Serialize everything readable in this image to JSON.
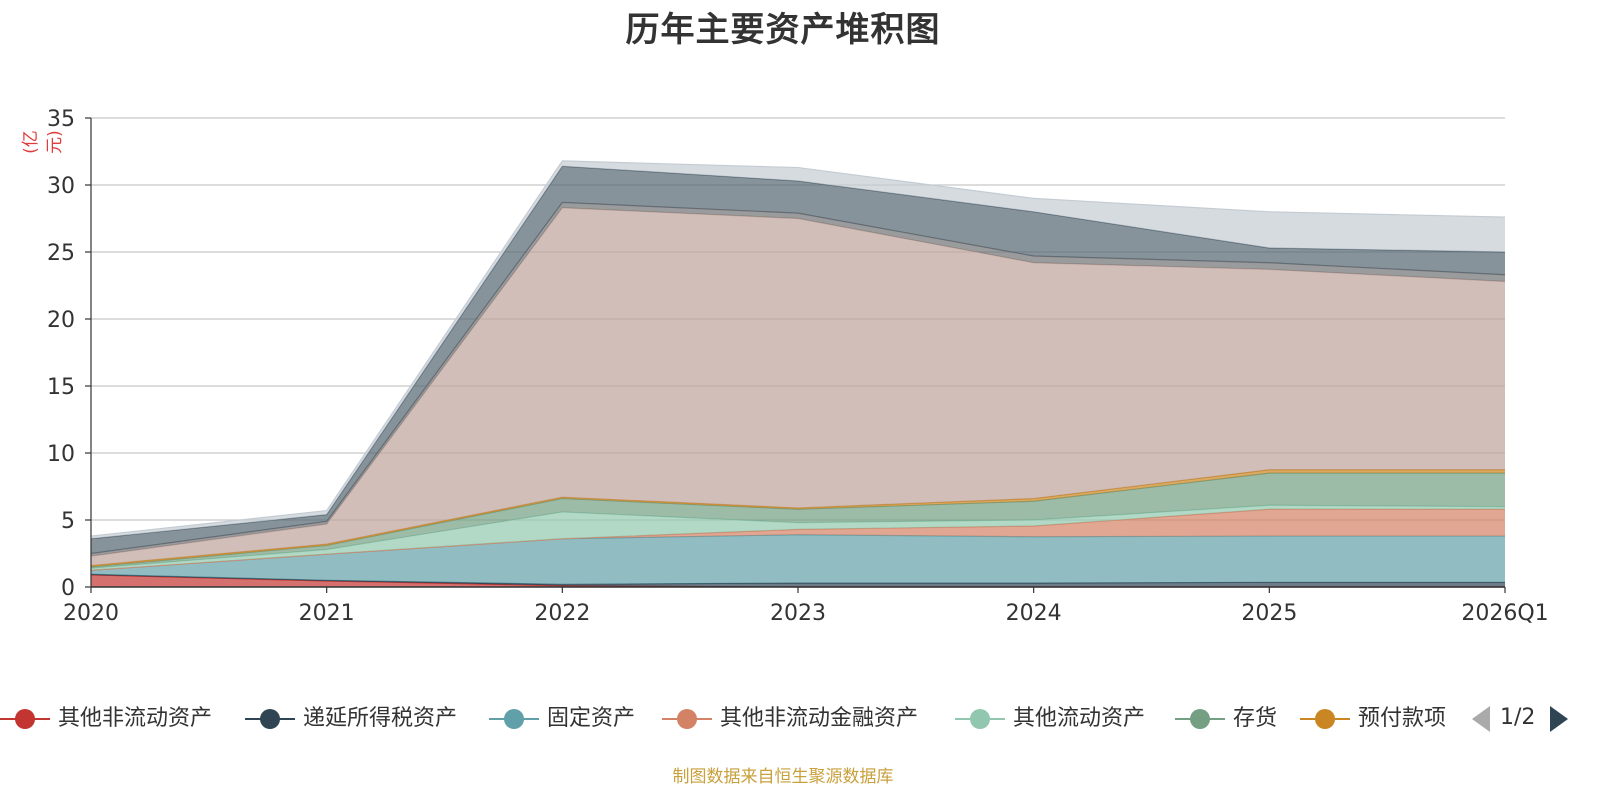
{
  "chart_data": {
    "type": "area",
    "stacked": true,
    "title": "历年主要资产堆积图",
    "ylabel": "(亿元)",
    "xlabel": "",
    "categories": [
      "2020",
      "2021",
      "2022",
      "2023",
      "2024",
      "2025",
      "2026Q1"
    ],
    "ylim": [
      0,
      35
    ],
    "yticks": [
      0,
      5,
      10,
      15,
      20,
      25,
      30,
      35
    ],
    "grid": true,
    "series": [
      {
        "name": "其他非流动资产",
        "color": "#c23531",
        "values": [
          0.9,
          0.45,
          0.1,
          0,
          0,
          0,
          0
        ]
      },
      {
        "name": "递延所得税资产",
        "color": "#2f4554",
        "values": [
          0.05,
          0.05,
          0.1,
          0.3,
          0.3,
          0.35,
          0.35
        ]
      },
      {
        "name": "固定资产",
        "color": "#61a0a8",
        "values": [
          0.3,
          1.95,
          3.4,
          3.6,
          3.45,
          3.45,
          3.45
        ]
      },
      {
        "name": "其他非流动金融资产",
        "color": "#d48265",
        "values": [
          0,
          0,
          0,
          0.4,
          0.8,
          2.0,
          2.0
        ]
      },
      {
        "name": "其他流动资产",
        "color": "#91c7ae",
        "values": [
          0.15,
          0.35,
          2.0,
          0.5,
          0.45,
          0.3,
          0.2
        ]
      },
      {
        "name": "存货",
        "color": "#749f83",
        "values": [
          0.1,
          0.3,
          1.0,
          1.0,
          1.4,
          2.4,
          2.5
        ]
      },
      {
        "name": "预付款项",
        "color": "#ca8622",
        "values": [
          0.1,
          0.1,
          0.1,
          0.1,
          0.2,
          0.25,
          0.25
        ]
      },
      {
        "color": "#bda29a",
        "values": [
          0.7,
          1.5,
          21.6,
          21.6,
          17.6,
          14.95,
          14.05
        ]
      },
      {
        "color": "#6e7074",
        "values": [
          0.2,
          0.2,
          0.4,
          0.4,
          0.5,
          0.5,
          0.5
        ]
      },
      {
        "color": "#546570",
        "values": [
          1.1,
          0.5,
          2.7,
          2.4,
          3.3,
          1.1,
          1.7
        ]
      },
      {
        "color": "#c4ccd3",
        "values": [
          0.2,
          0.3,
          0.4,
          1.0,
          1.0,
          2.7,
          2.6
        ]
      }
    ]
  },
  "legend": {
    "page": "1/2"
  },
  "source": "制图数据来自恒生聚源数据库",
  "colors": {
    "unit_label": "#e03c3c",
    "source_text": "#c9a03c",
    "pager_inactive": "#aaaaaa",
    "pager_active": "#2f4554"
  }
}
